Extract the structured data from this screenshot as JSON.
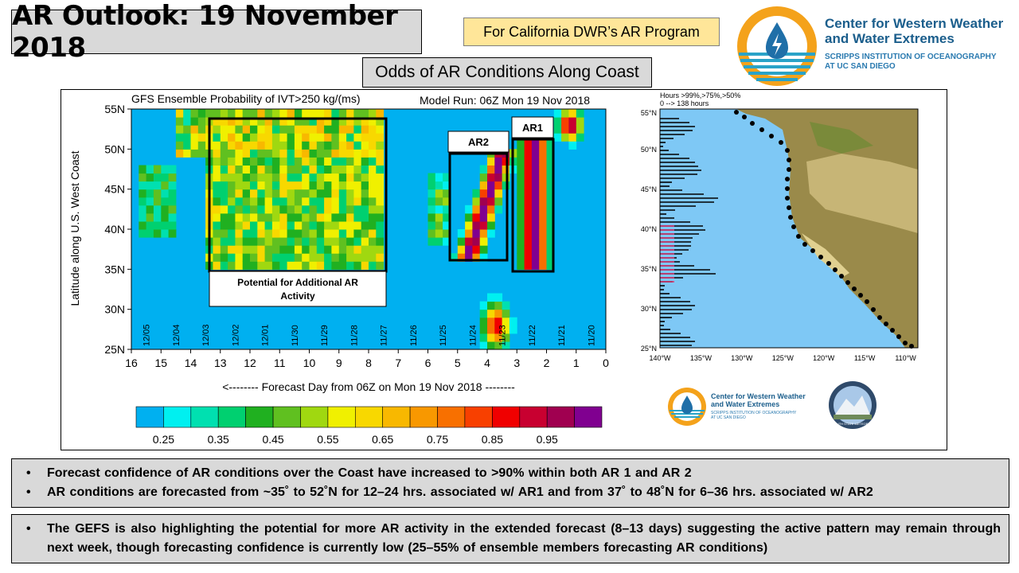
{
  "title": "AR Outlook: 19 November 2018",
  "program": "For California DWR’s AR Program",
  "subtitle": "Odds of AR Conditions Along Coast",
  "org": {
    "name_line1": "Center for Western Weather",
    "name_line2": "and Water Extremes",
    "sub_line1": "SCRIPPS INSTITUTION OF OCEANOGRAPHY",
    "sub_line2": "AT UC SAN DIEGO",
    "small_line1": "Center for Western Weather",
    "small_line2": "and Water Extremes",
    "small_line3": "SCRIPPS INSTITUTION OF OCEANOGRAPHY",
    "small_line4": "AT UC SAN DIEGO",
    "partner_label": "PLYMOUTH STATE METEOROLOGY",
    "logo_icon": "water-drop-icon",
    "colors": {
      "logo_orange": "#f4a21b",
      "logo_blue": "#1f6fa8",
      "teal": "#2aa3c8"
    }
  },
  "chart_data": {
    "type": "heatmap",
    "title": "GFS Ensemble Probability of IVT>250 kg/(ms)",
    "model_run": "Model Run: 06Z Mon 19 Nov 2018",
    "xlabel": "<-------- Forecast Day from 06Z on Mon 19 Nov 2018 --------",
    "ylabel": "Latitude along U.S. West Coast",
    "x_ticks": [
      "16",
      "15",
      "14",
      "13",
      "12",
      "11",
      "10",
      "9",
      "8",
      "7",
      "6",
      "5",
      "4",
      "3",
      "2",
      "1",
      "0"
    ],
    "y_ticks": [
      "55N",
      "50N",
      "45N",
      "40N",
      "35N",
      "30N",
      "25N"
    ],
    "date_ticks": [
      "12/05",
      "12/04",
      "12/03",
      "12/02",
      "12/01",
      "11/30",
      "11/29",
      "11/28",
      "11/27",
      "11/26",
      "11/25",
      "11/24",
      "11/23",
      "11/22",
      "11/21",
      "11/20"
    ],
    "xlim": [
      16,
      0
    ],
    "ylim": [
      25,
      55
    ],
    "annotations": [
      {
        "label": "AR1",
        "x_range": [
          3.0,
          1.8
        ],
        "lat_range": [
          35,
          52
        ]
      },
      {
        "label": "AR2",
        "x_range": [
          5.2,
          3.3
        ],
        "lat_range": [
          36,
          50
        ]
      },
      {
        "label": "Potential for Additional AR Activity",
        "x_range": [
          13.5,
          7.5
        ],
        "lat_range": [
          35,
          54
        ]
      }
    ],
    "colorbar": {
      "colors": [
        "#00b0f0",
        "#00f0f0",
        "#00e0b0",
        "#00d070",
        "#20b020",
        "#60c020",
        "#a0d810",
        "#f0f000",
        "#f8d800",
        "#f8b800",
        "#f89800",
        "#f87000",
        "#f84000",
        "#f00000",
        "#c80030",
        "#a00050",
        "#800090"
      ],
      "labels": [
        "0.25",
        "0.35",
        "0.45",
        "0.55",
        "0.65",
        "0.75",
        "0.85",
        "0.95"
      ]
    }
  },
  "map": {
    "legend_line1": "Hours >99%,>75%,>50%",
    "legend_line2": "0 --> 138 hours",
    "lat_ticks": [
      "55°N",
      "50°N",
      "45°N",
      "40°N",
      "35°N",
      "30°N",
      "25°N"
    ],
    "lon_ticks": [
      "140°W",
      "135°W",
      "130°W",
      "125°W",
      "120°W",
      "115°W",
      "110°W"
    ]
  },
  "bullets_top": [
    "Forecast confidence of AR conditions over the Coast have increased to >90% within both AR 1 and AR 2",
    "AR conditions are forecasted from ~35˚ to 52˚N for 12–24 hrs. associated w/ AR1 and from 37˚ to 48˚N for 6–36 hrs. associated w/ AR2"
  ],
  "bullets_bottom": [
    "The GEFS is also highlighting the potential for more AR activity in the extended forecast (8–13 days) suggesting the active pattern may remain through next week, though forecasting confidence is currently low (25–55% of ensemble members forecasting AR conditions)"
  ]
}
